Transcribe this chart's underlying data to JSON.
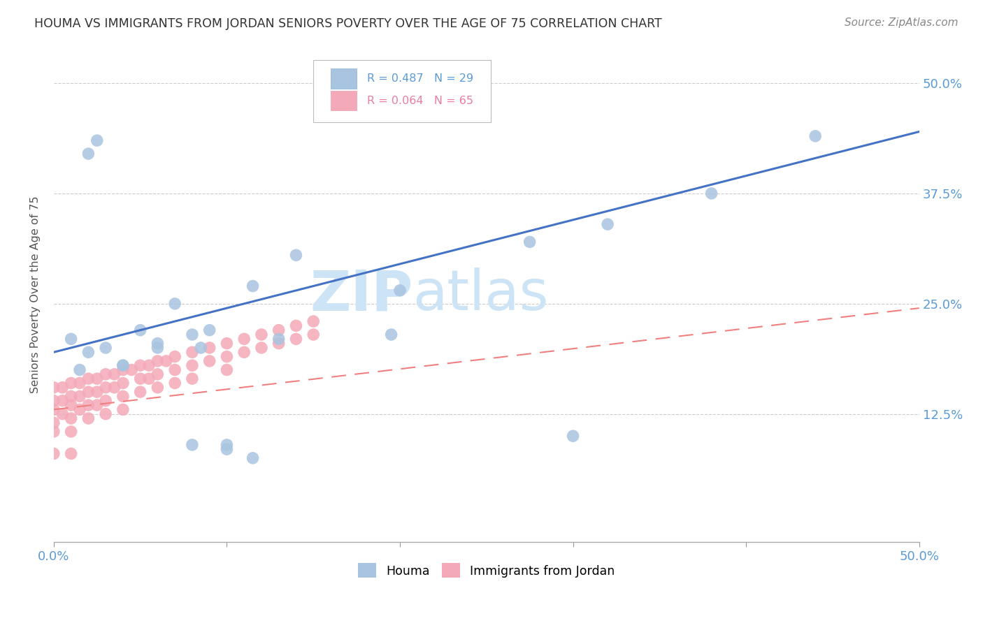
{
  "title": "HOUMA VS IMMIGRANTS FROM JORDAN SENIORS POVERTY OVER THE AGE OF 75 CORRELATION CHART",
  "source": "Source: ZipAtlas.com",
  "ylabel": "Seniors Poverty Over the Age of 75",
  "xlim": [
    0,
    0.5
  ],
  "ylim": [
    -0.02,
    0.54
  ],
  "houma_color": "#a8c4e0",
  "jordan_color": "#f4a9b8",
  "houma_line_color": "#4472c4",
  "jordan_line_color": "#f08080",
  "watermark_color": "#cce4f5",
  "houma_x": [
    0.025,
    0.02,
    0.14,
    0.07,
    0.085,
    0.115,
    0.06,
    0.04,
    0.015,
    0.02,
    0.01,
    0.03,
    0.04,
    0.05,
    0.06,
    0.08,
    0.09,
    0.13,
    0.08,
    0.1,
    0.195,
    0.275,
    0.32,
    0.38,
    0.44,
    0.1,
    0.115,
    0.3,
    0.2
  ],
  "houma_y": [
    0.435,
    0.42,
    0.305,
    0.25,
    0.2,
    0.27,
    0.2,
    0.18,
    0.175,
    0.195,
    0.21,
    0.2,
    0.18,
    0.22,
    0.205,
    0.215,
    0.22,
    0.21,
    0.09,
    0.085,
    0.215,
    0.32,
    0.34,
    0.375,
    0.44,
    0.09,
    0.075,
    0.1,
    0.265
  ],
  "jordan_x": [
    0.0,
    0.0,
    0.0,
    0.0,
    0.0,
    0.005,
    0.005,
    0.005,
    0.01,
    0.01,
    0.01,
    0.01,
    0.01,
    0.015,
    0.015,
    0.015,
    0.02,
    0.02,
    0.02,
    0.02,
    0.025,
    0.025,
    0.025,
    0.03,
    0.03,
    0.03,
    0.03,
    0.035,
    0.035,
    0.04,
    0.04,
    0.04,
    0.04,
    0.045,
    0.05,
    0.05,
    0.05,
    0.055,
    0.055,
    0.06,
    0.06,
    0.06,
    0.065,
    0.07,
    0.07,
    0.07,
    0.08,
    0.08,
    0.08,
    0.09,
    0.09,
    0.1,
    0.1,
    0.1,
    0.11,
    0.11,
    0.12,
    0.12,
    0.13,
    0.13,
    0.14,
    0.14,
    0.15,
    0.15,
    0.0,
    0.01
  ],
  "jordan_y": [
    0.155,
    0.14,
    0.13,
    0.115,
    0.105,
    0.155,
    0.14,
    0.125,
    0.16,
    0.145,
    0.135,
    0.12,
    0.105,
    0.16,
    0.145,
    0.13,
    0.165,
    0.15,
    0.135,
    0.12,
    0.165,
    0.15,
    0.135,
    0.17,
    0.155,
    0.14,
    0.125,
    0.17,
    0.155,
    0.175,
    0.16,
    0.145,
    0.13,
    0.175,
    0.18,
    0.165,
    0.15,
    0.18,
    0.165,
    0.185,
    0.17,
    0.155,
    0.185,
    0.19,
    0.175,
    0.16,
    0.195,
    0.18,
    0.165,
    0.2,
    0.185,
    0.205,
    0.19,
    0.175,
    0.21,
    0.195,
    0.215,
    0.2,
    0.22,
    0.205,
    0.225,
    0.21,
    0.23,
    0.215,
    0.08,
    0.08
  ],
  "houma_trendline": [
    0.195,
    0.445
  ],
  "jordan_trendline": [
    0.13,
    0.245
  ]
}
